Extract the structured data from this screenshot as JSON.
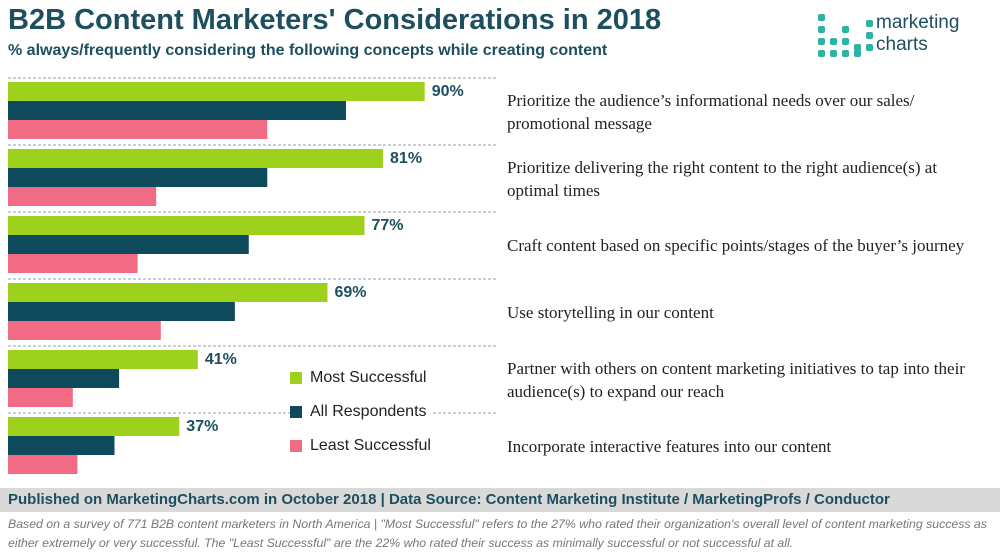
{
  "chart_data": {
    "type": "bar",
    "title": "B2B Content Marketers' Considerations in 2018",
    "subtitle": "% always/frequently considering the following concepts while creating content",
    "logo": [
      "marketing",
      "charts"
    ],
    "categories": [
      "Prioritize the audience’s informational needs over our sales/ promotional message",
      "Prioritize delivering the right content to the right audience(s) at optimal times",
      "Craft content based on specific points/stages of the buyer’s journey",
      "Use storytelling in our content",
      "Partner with others on content marketing initiatives to tap into their audience(s) to expand our reach",
      "Incorporate interactive features into our content"
    ],
    "series": [
      {
        "name": "Most Successful",
        "color": "#9ed11c",
        "values": [
          90,
          81,
          77,
          69,
          41,
          37
        ],
        "value_labels": [
          "90%",
          "81%",
          "77%",
          "69%",
          "41%",
          "37%"
        ]
      },
      {
        "name": "All Respondents",
        "color": "#0e4a5c",
        "values": [
          73,
          56,
          52,
          49,
          24,
          23
        ]
      },
      {
        "name": "Least Successful",
        "color": "#f26b85",
        "values": [
          56,
          32,
          28,
          33,
          14,
          15
        ]
      }
    ],
    "xlim": [
      0,
      100
    ],
    "source": "Published on MarketingCharts.com in October 2018 | Data Source: Content Marketing Institute / MarketingProfs / Conductor",
    "note": "Based on a survey of 771 B2B content marketers in North America | \"Most Successful\" refers to the 27% who rated their organization's overall level of content marketing success as either extremely or very successful. The \"Least Successful\" are the 22% who rated their success as minimally successful or not successful at all."
  }
}
